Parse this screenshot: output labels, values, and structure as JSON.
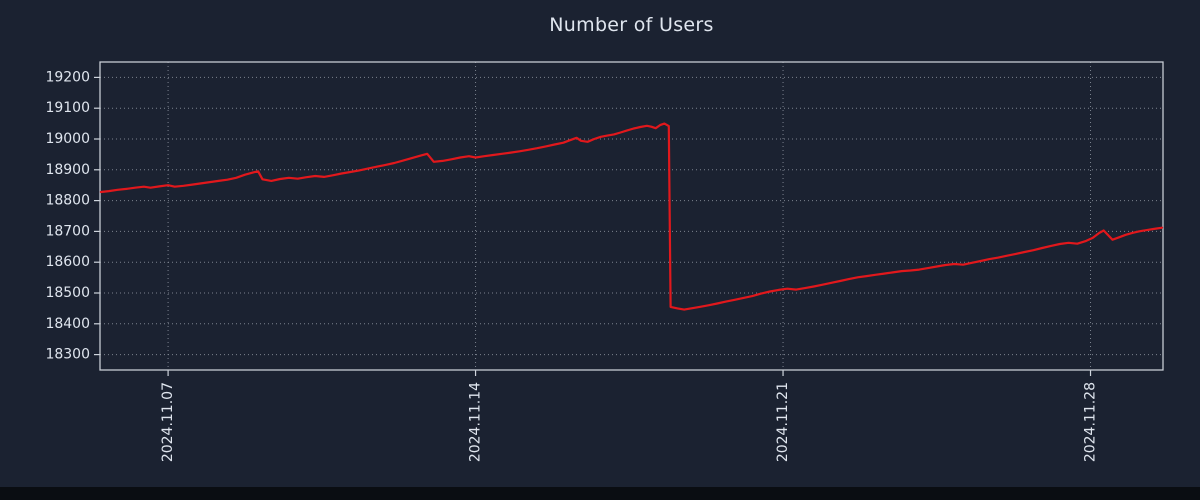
{
  "colors": {
    "background": "#1b2231",
    "bottom_strip": "#0a0d12",
    "line": "#e1181c",
    "text": "#dfe5ee",
    "grid": "#8d95a0",
    "border": "#c7ccd4",
    "tick": "#cfd5dd"
  },
  "chart_data": {
    "type": "line",
    "title": "Number of Users",
    "xlabel": "",
    "ylabel": "",
    "legend": "none",
    "grid": "dotted-both-axes",
    "xlim_days": [
      5.45,
      29.65
    ],
    "ylim": [
      18250,
      19250
    ],
    "x_ticks": [
      {
        "day": 7,
        "label": "2024.11.07"
      },
      {
        "day": 14,
        "label": "2024.11.14"
      },
      {
        "day": 21,
        "label": "2024.11.21"
      },
      {
        "day": 28,
        "label": "2024.11.28"
      }
    ],
    "y_ticks": [
      18300,
      18400,
      18500,
      18600,
      18700,
      18800,
      18900,
      19000,
      19100,
      19200
    ],
    "series_name": "Number of Users",
    "points": [
      [
        5.47,
        18828
      ],
      [
        5.65,
        18831
      ],
      [
        5.85,
        18835
      ],
      [
        6.05,
        18838
      ],
      [
        6.25,
        18842
      ],
      [
        6.45,
        18845
      ],
      [
        6.6,
        18842
      ],
      [
        6.8,
        18846
      ],
      [
        7.0,
        18850
      ],
      [
        7.15,
        18845
      ],
      [
        7.35,
        18848
      ],
      [
        7.55,
        18852
      ],
      [
        7.75,
        18856
      ],
      [
        7.95,
        18860
      ],
      [
        8.15,
        18864
      ],
      [
        8.35,
        18868
      ],
      [
        8.55,
        18874
      ],
      [
        8.75,
        18884
      ],
      [
        8.95,
        18892
      ],
      [
        9.05,
        18895
      ],
      [
        9.15,
        18869
      ],
      [
        9.35,
        18864
      ],
      [
        9.55,
        18870
      ],
      [
        9.75,
        18874
      ],
      [
        9.95,
        18871
      ],
      [
        10.15,
        18876
      ],
      [
        10.35,
        18880
      ],
      [
        10.55,
        18877
      ],
      [
        10.75,
        18882
      ],
      [
        10.95,
        18888
      ],
      [
        11.15,
        18893
      ],
      [
        11.35,
        18898
      ],
      [
        11.55,
        18904
      ],
      [
        11.75,
        18910
      ],
      [
        11.95,
        18916
      ],
      [
        12.15,
        18922
      ],
      [
        12.35,
        18930
      ],
      [
        12.55,
        18938
      ],
      [
        12.75,
        18946
      ],
      [
        12.9,
        18952
      ],
      [
        13.05,
        18926
      ],
      [
        13.25,
        18929
      ],
      [
        13.45,
        18934
      ],
      [
        13.65,
        18940
      ],
      [
        13.85,
        18944
      ],
      [
        14.0,
        18940
      ],
      [
        14.2,
        18944
      ],
      [
        14.4,
        18948
      ],
      [
        14.6,
        18952
      ],
      [
        14.8,
        18956
      ],
      [
        15.0,
        18960
      ],
      [
        15.2,
        18965
      ],
      [
        15.4,
        18970
      ],
      [
        15.6,
        18976
      ],
      [
        15.8,
        18982
      ],
      [
        16.0,
        18988
      ],
      [
        16.15,
        18996
      ],
      [
        16.3,
        19004
      ],
      [
        16.4,
        18994
      ],
      [
        16.55,
        18991
      ],
      [
        16.7,
        19000
      ],
      [
        16.85,
        19007
      ],
      [
        17.0,
        19011
      ],
      [
        17.15,
        19015
      ],
      [
        17.3,
        19021
      ],
      [
        17.45,
        19028
      ],
      [
        17.6,
        19034
      ],
      [
        17.75,
        19039
      ],
      [
        17.9,
        19043
      ],
      [
        18.0,
        19040
      ],
      [
        18.1,
        19035
      ],
      [
        18.2,
        19045
      ],
      [
        18.3,
        19050
      ],
      [
        18.4,
        19042
      ],
      [
        18.44,
        18455
      ],
      [
        18.6,
        18450
      ],
      [
        18.75,
        18446
      ],
      [
        18.9,
        18450
      ],
      [
        19.1,
        18455
      ],
      [
        19.3,
        18460
      ],
      [
        19.5,
        18466
      ],
      [
        19.7,
        18472
      ],
      [
        19.9,
        18478
      ],
      [
        20.1,
        18484
      ],
      [
        20.3,
        18490
      ],
      [
        20.5,
        18498
      ],
      [
        20.7,
        18505
      ],
      [
        20.9,
        18510
      ],
      [
        21.1,
        18514
      ],
      [
        21.3,
        18511
      ],
      [
        21.5,
        18516
      ],
      [
        21.7,
        18521
      ],
      [
        21.9,
        18527
      ],
      [
        22.1,
        18533
      ],
      [
        22.3,
        18539
      ],
      [
        22.5,
        18545
      ],
      [
        22.7,
        18551
      ],
      [
        22.9,
        18555
      ],
      [
        23.1,
        18559
      ],
      [
        23.3,
        18563
      ],
      [
        23.5,
        18567
      ],
      [
        23.7,
        18571
      ],
      [
        23.9,
        18573
      ],
      [
        24.1,
        18576
      ],
      [
        24.3,
        18581
      ],
      [
        24.5,
        18586
      ],
      [
        24.7,
        18591
      ],
      [
        24.9,
        18594
      ],
      [
        25.1,
        18592
      ],
      [
        25.3,
        18598
      ],
      [
        25.5,
        18604
      ],
      [
        25.7,
        18610
      ],
      [
        25.9,
        18615
      ],
      [
        26.1,
        18621
      ],
      [
        26.3,
        18627
      ],
      [
        26.5,
        18633
      ],
      [
        26.7,
        18639
      ],
      [
        26.9,
        18646
      ],
      [
        27.1,
        18653
      ],
      [
        27.3,
        18659
      ],
      [
        27.5,
        18663
      ],
      [
        27.7,
        18660
      ],
      [
        27.9,
        18669
      ],
      [
        28.05,
        18679
      ],
      [
        28.2,
        18695
      ],
      [
        28.3,
        18703
      ],
      [
        28.4,
        18688
      ],
      [
        28.5,
        18673
      ],
      [
        28.65,
        18681
      ],
      [
        28.8,
        18689
      ],
      [
        28.95,
        18695
      ],
      [
        29.1,
        18700
      ],
      [
        29.3,
        18705
      ],
      [
        29.45,
        18708
      ],
      [
        29.63,
        18712
      ]
    ]
  }
}
